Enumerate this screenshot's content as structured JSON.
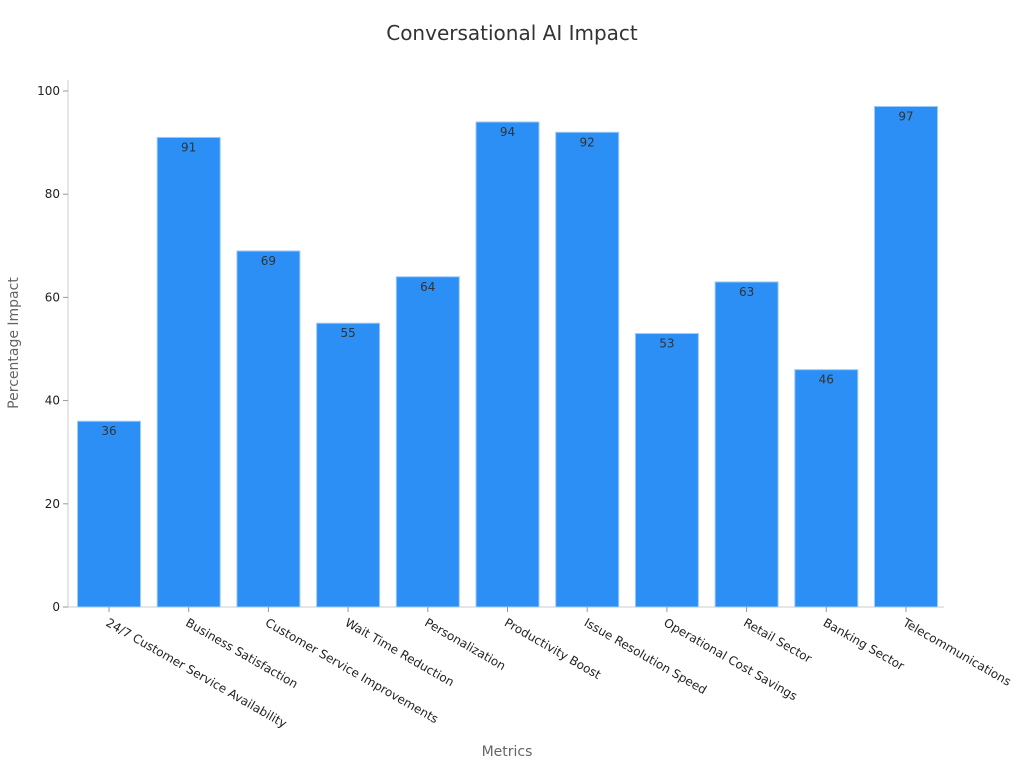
{
  "chart_data": {
    "type": "bar",
    "title": "Conversational AI Impact",
    "xlabel": "Metrics",
    "ylabel": "Percentage Impact",
    "categories": [
      "24/7 Customer Service Availability",
      "Business Satisfaction",
      "Customer Service Improvements",
      "Wait Time Reduction",
      "Personalization",
      "Productivity Boost",
      "Issue Resolution Speed",
      "Operational Cost Savings",
      "Retail Sector",
      "Banking Sector",
      "Telecommunications"
    ],
    "values": [
      36,
      91,
      69,
      55,
      64,
      94,
      92,
      53,
      63,
      46,
      97
    ],
    "ylim": [
      0,
      100
    ],
    "yticks": [
      0,
      20,
      40,
      60,
      80,
      100
    ],
    "grid": false,
    "legend": "none",
    "bar_color": "#2b8ff5",
    "bar_edge_color": "#9ecbf7"
  }
}
